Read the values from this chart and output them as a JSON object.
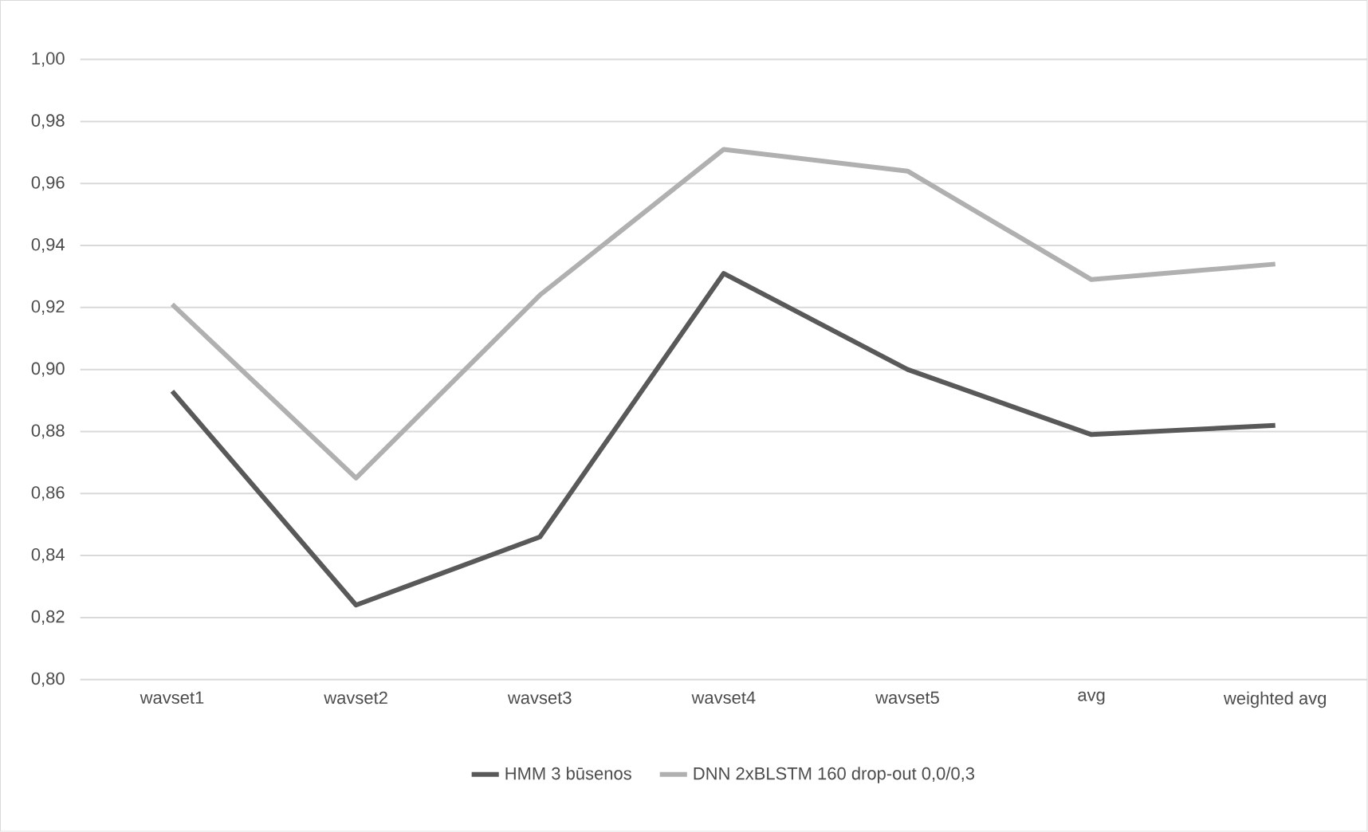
{
  "chart_data": {
    "type": "line",
    "categories": [
      "wavset1",
      "wavset2",
      "wavset3",
      "wavset4",
      "wavset5",
      "avg",
      "weighted avg"
    ],
    "series": [
      {
        "name": "HMM 3 būsenos",
        "color": "#595959",
        "values": [
          0.893,
          0.824,
          0.846,
          0.931,
          0.9,
          0.879,
          0.882
        ]
      },
      {
        "name": "DNN 2xBLSTM 160 drop-out 0,0/0,3",
        "color": "#b0b0b0",
        "values": [
          0.921,
          0.865,
          0.924,
          0.971,
          0.964,
          0.929,
          0.934
        ]
      }
    ],
    "ylim": [
      0.8,
      1.0
    ],
    "yticks": [
      {
        "value": 0.8,
        "label": "0,80"
      },
      {
        "value": 0.82,
        "label": "0,82"
      },
      {
        "value": 0.84,
        "label": "0,84"
      },
      {
        "value": 0.86,
        "label": "0,86"
      },
      {
        "value": 0.88,
        "label": "0,88"
      },
      {
        "value": 0.9,
        "label": "0,90"
      },
      {
        "value": 0.92,
        "label": "0,92"
      },
      {
        "value": 0.94,
        "label": "0,94"
      },
      {
        "value": 0.96,
        "label": "0,96"
      },
      {
        "value": 0.98,
        "label": "0,98"
      },
      {
        "value": 1.0,
        "label": "1,00"
      }
    ],
    "grid": "y",
    "legend": "bottom",
    "marker": "none",
    "line_style": "solid"
  }
}
